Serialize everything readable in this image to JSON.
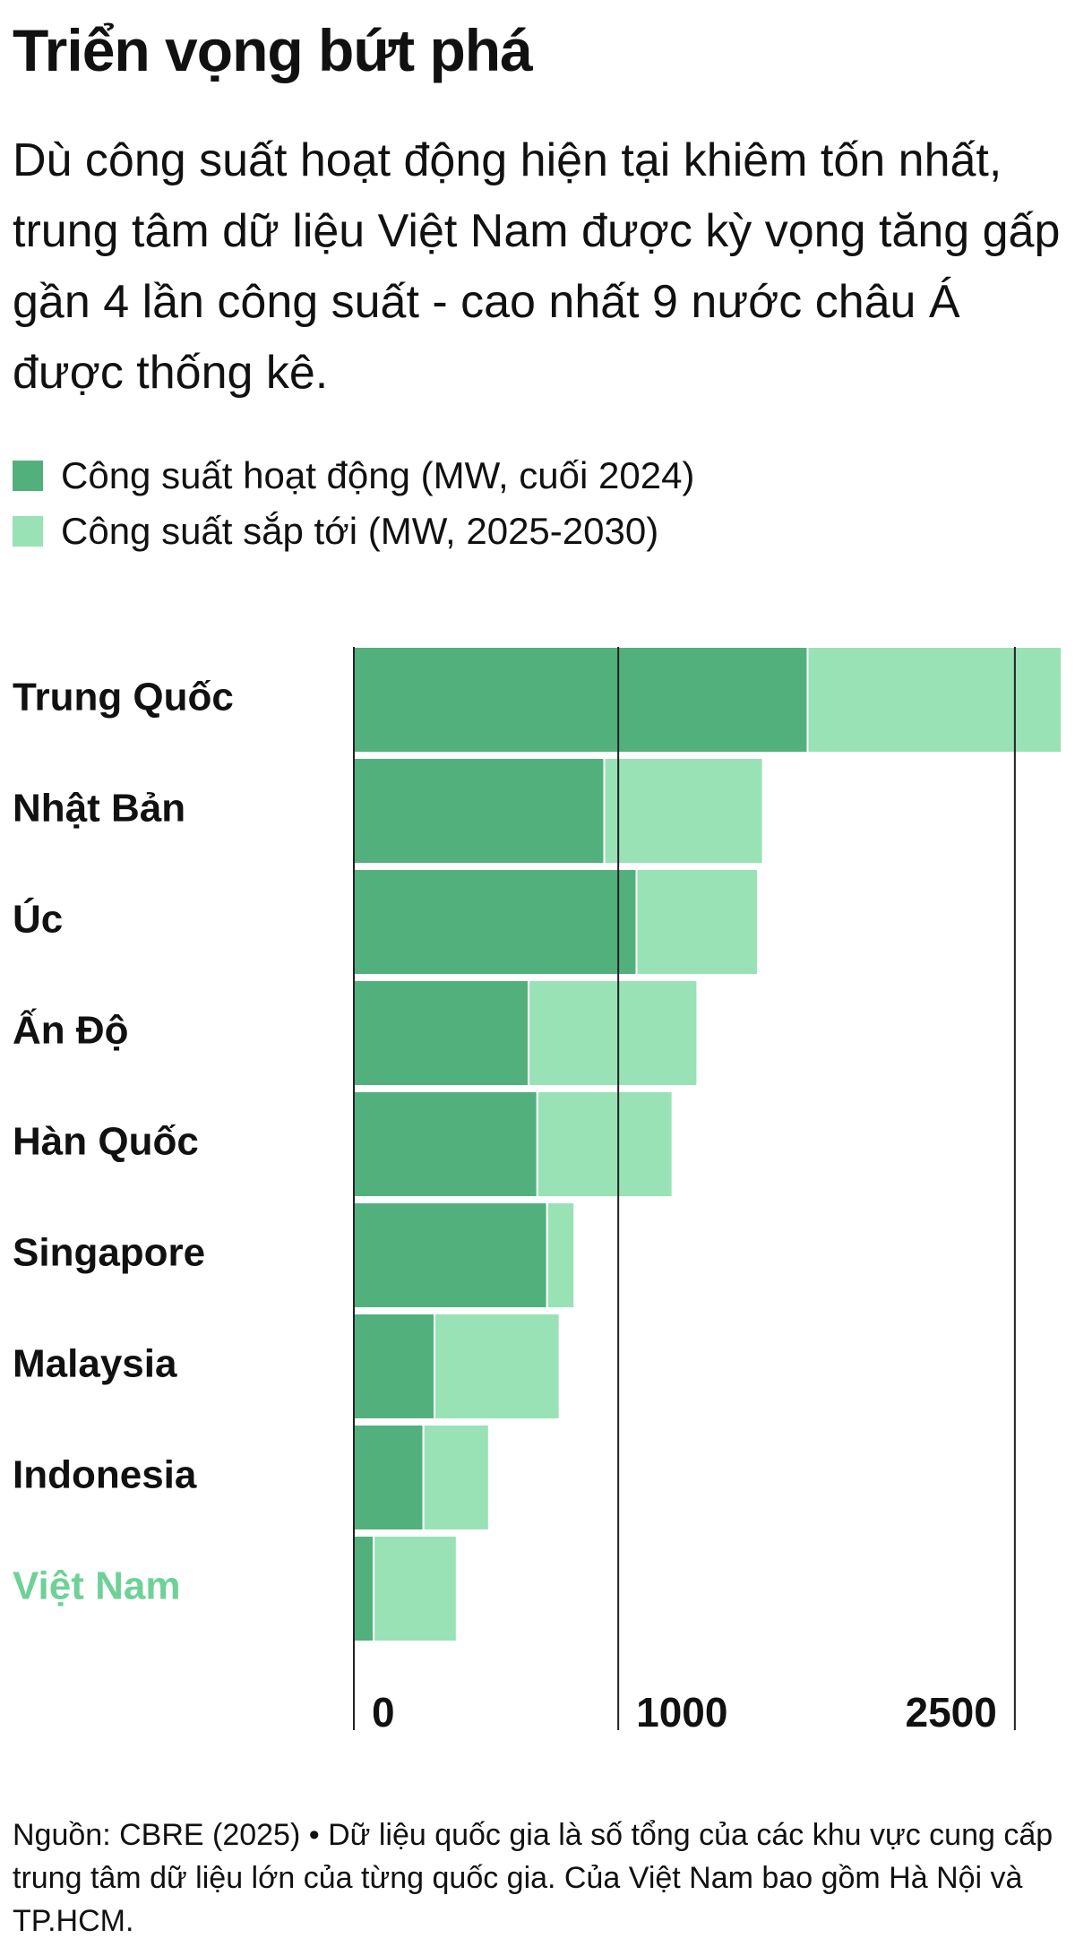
{
  "chart_data": {
    "type": "stacked-bar-horizontal",
    "title": "Triển vọng bứt phá",
    "subtitle": "Dù công suất hoạt động hiện tại khiêm tốn nhất, trung tâm dữ liệu Việt Nam được kỳ vọng tăng gấp gần 4 lần công suất - cao nhất 9 nước châu Á được thống kê.",
    "categories": [
      "Trung Quốc",
      "Nhật Bản",
      "Úc",
      "Ấn Độ",
      "Hàn Quốc",
      "Singapore",
      "Malaysia",
      "Indonesia",
      "Việt Nam"
    ],
    "highlight_category": "Việt Nam",
    "highlight_color": "#6fd197",
    "series": [
      {
        "name": "Công suất hoạt động (MW, cuối 2024)",
        "color": "#52b07d",
        "values": [
          1716,
          947,
          1069,
          661,
          694,
          731,
          305,
          263,
          75
        ]
      },
      {
        "name": "Công suất sắp tới (MW, 2025-2030)",
        "color": "#98e2b6",
        "values": [
          961,
          600,
          459,
          638,
          511,
          103,
          473,
          248,
          314
        ]
      }
    ],
    "xlim": [
      0,
      2680
    ],
    "xticks": [
      0,
      1000,
      2500
    ],
    "grid": true,
    "source": "Nguồn: CBRE (2025) • Dữ liệu quốc gia là số tổng của các khu vực cung cấp trung tâm dữ liệu lớn của từng quốc gia. Của Việt Nam bao gồm Hà Nội và TP.HCM."
  }
}
